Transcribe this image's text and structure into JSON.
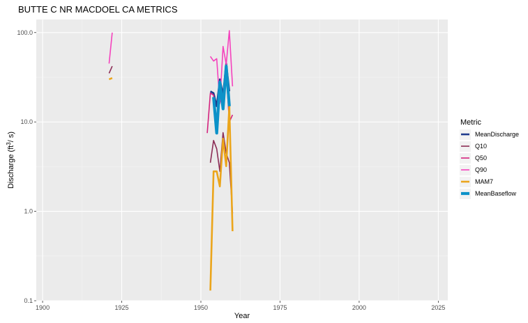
{
  "chart_data": {
    "type": "line",
    "title": "BUTTE C NR MACDOEL CA  METRICS",
    "xlabel": "Year",
    "ylabel_parts": {
      "main": "Discharge (ft",
      "sup": "3",
      "tail": "/ s)"
    },
    "xlim": [
      1898,
      2028
    ],
    "ylim": [
      0.1,
      140
    ],
    "log_y": true,
    "grid": true,
    "x_ticks": [
      1900,
      1925,
      1950,
      1975,
      2000,
      2025
    ],
    "x_tick_labels": [
      "1900",
      "1925",
      "1950",
      "1975",
      "2000",
      "2025"
    ],
    "y_ticks": [
      0.1,
      1,
      10,
      100
    ],
    "y_tick_labels": [
      "0.1",
      "1.0",
      "10.0",
      "100.0"
    ],
    "legend_title": "Metric",
    "legend_position": "right",
    "series": [
      {
        "name": "MeanDischarge",
        "color": "#1f3b8c",
        "width": 2.6,
        "x": [
          1953,
          1954,
          1955,
          1956,
          1957,
          1958,
          1959
        ],
        "y": [
          22,
          21,
          15,
          30,
          20,
          45,
          22
        ]
      },
      {
        "name": "Q10",
        "color": "#8b2c55",
        "width": 1.6,
        "x": [
          1921,
          1922,
          1952,
          1953,
          1954,
          1955,
          1956,
          1957,
          1958,
          1959,
          1960
        ],
        "y": [
          35,
          42,
          null,
          3.5,
          6.2,
          5.0,
          2.8,
          7.6,
          4.5,
          3.5,
          0.95
        ]
      },
      {
        "name": "Q50",
        "color": "#d4237e",
        "width": 1.6,
        "x": [
          1952,
          1953,
          1954,
          1955,
          1956,
          1957,
          1958,
          1959,
          1960
        ],
        "y": [
          7.5,
          21,
          20,
          9.5,
          18,
          15,
          36,
          10,
          12
        ]
      },
      {
        "name": "Q90",
        "color": "#f542bd",
        "width": 1.6,
        "x": [
          1921,
          1922,
          1952,
          1953,
          1954,
          1955,
          1956,
          1957,
          1958,
          1959,
          1960
        ],
        "y": [
          45,
          100,
          null,
          54,
          48,
          51,
          16,
          70,
          44,
          105,
          25
        ]
      },
      {
        "name": "MAM7",
        "color": "#eba51b",
        "width": 2.6,
        "x": [
          1921,
          1922,
          1952,
          1953,
          1954,
          1955,
          1956,
          1957,
          1958,
          1959,
          1960
        ],
        "y": [
          30,
          31,
          null,
          0.13,
          2.8,
          2.8,
          1.9,
          6.5,
          3.2,
          15,
          0.6
        ]
      },
      {
        "name": "MeanBaseflow",
        "color": "#0c92c8",
        "width": 4.2,
        "x": [
          1954,
          1955,
          1956,
          1957,
          1958,
          1959
        ],
        "y": [
          19,
          7.5,
          28,
          14,
          42,
          15
        ]
      }
    ]
  }
}
